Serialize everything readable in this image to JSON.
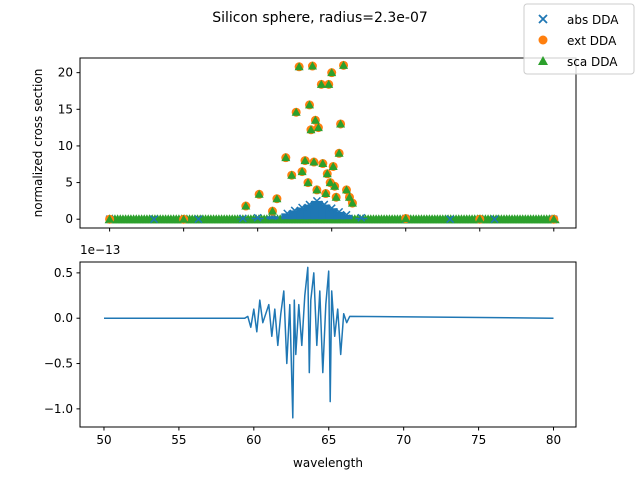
{
  "title": "Silicon sphere, radius=2.3e-07",
  "legend": {
    "placement": "top-right (outside axes)",
    "items": [
      {
        "label": "abs DDA",
        "marker": "x",
        "color": "#1f77b4"
      },
      {
        "label": "ext DDA",
        "marker": "circle",
        "color": "#ff7f0e"
      },
      {
        "label": "sca DDA",
        "marker": "triangle",
        "color": "#2ca02c"
      }
    ]
  },
  "chart_data": [
    {
      "type": "scatter",
      "ylabel": "normalized cross section",
      "xlim": [
        48,
        81.5
      ],
      "ylim": [
        -1.2,
        22
      ],
      "yticks": [
        "0",
        "5",
        "10",
        "15",
        "20"
      ],
      "ytick_values": [
        0,
        5,
        10,
        15,
        20
      ],
      "xtick_values": [
        50,
        55,
        60,
        65,
        70,
        75,
        80
      ],
      "grid": false,
      "series": [
        {
          "name": "abs DDA",
          "marker": "x",
          "color": "#1f77b4",
          "x": [
            50,
            53,
            56,
            59,
            60,
            61,
            62,
            62.5,
            63,
            63.5,
            64,
            64.5,
            65,
            65.5,
            66,
            67,
            70,
            73,
            76,
            80
          ],
          "y": [
            0,
            0,
            0,
            0.1,
            0.2,
            0.4,
            0.8,
            1.2,
            1.6,
            2.0,
            2.5,
            2.0,
            1.5,
            1.0,
            0.6,
            0.2,
            0.05,
            0,
            0,
            0
          ]
        },
        {
          "name": "ext DDA",
          "marker": "circle",
          "color": "#ff7f0e",
          "x": [
            50,
            55,
            59.2,
            60.1,
            61,
            61.3,
            61.9,
            62.3,
            62.6,
            62.8,
            63,
            63.2,
            63.4,
            63.5,
            63.6,
            63.7,
            63.8,
            63.9,
            64,
            64.1,
            64.3,
            64.4,
            64.6,
            64.7,
            64.8,
            64.9,
            65,
            65.1,
            65.2,
            65.3,
            65.5,
            65.6,
            65.8,
            66,
            66.2,
            66.4,
            70,
            75,
            80
          ],
          "y": [
            0,
            0,
            1.8,
            3.4,
            1.1,
            2.8,
            8.4,
            6.0,
            14.6,
            20.8,
            6.5,
            8.0,
            5.0,
            15.6,
            12.2,
            20.9,
            7.8,
            13.5,
            4.0,
            12.5,
            18.4,
            7.6,
            3.5,
            6.2,
            18.4,
            5.0,
            20.0,
            7.2,
            4.5,
            3.0,
            9.0,
            13.0,
            21.0,
            4.0,
            3.0,
            2.2,
            0.1,
            0,
            0
          ]
        },
        {
          "name": "sca DDA",
          "marker": "triangle",
          "color": "#2ca02c",
          "x": [
            50,
            55,
            59.2,
            60.1,
            61,
            61.3,
            61.9,
            62.3,
            62.6,
            62.8,
            63,
            63.2,
            63.4,
            63.5,
            63.6,
            63.7,
            63.8,
            63.9,
            64,
            64.1,
            64.3,
            64.4,
            64.6,
            64.7,
            64.8,
            64.9,
            65,
            65.1,
            65.2,
            65.3,
            65.5,
            65.6,
            65.8,
            66,
            66.2,
            66.4,
            70,
            75,
            80
          ],
          "y": [
            0,
            0,
            1.8,
            3.4,
            1.1,
            2.8,
            8.4,
            6.0,
            14.6,
            20.8,
            6.5,
            8.0,
            5.0,
            15.6,
            12.2,
            20.9,
            7.8,
            13.5,
            4.0,
            12.5,
            18.4,
            7.6,
            3.5,
            6.2,
            18.4,
            5.0,
            20.0,
            7.2,
            4.5,
            3.0,
            9.0,
            13.0,
            21.0,
            4.0,
            3.0,
            2.2,
            0.1,
            0,
            0
          ]
        }
      ]
    },
    {
      "type": "line",
      "xlabel": "wavelength",
      "offset_text": "1e−13",
      "xlim": [
        48.4,
        81.5
      ],
      "ylim": [
        -1.2,
        0.62
      ],
      "xticks": [
        "50",
        "55",
        "60",
        "65",
        "70",
        "75",
        "80"
      ],
      "xtick_values": [
        50,
        55,
        60,
        65,
        70,
        75,
        80
      ],
      "yticks": [
        "0.5",
        "0.0",
        "−0.5",
        "−1.0"
      ],
      "ytick_values": [
        0.5,
        0.0,
        -0.5,
        -1.0
      ],
      "grid": false,
      "series": [
        {
          "color": "#1f77b4",
          "x": [
            50,
            59.4,
            59.6,
            59.8,
            60,
            60.2,
            60.4,
            60.6,
            60.8,
            61,
            61.2,
            61.4,
            61.6,
            61.8,
            62,
            62.2,
            62.4,
            62.6,
            62.7,
            62.8,
            63,
            63.2,
            63.4,
            63.6,
            63.7,
            63.8,
            64,
            64.2,
            64.4,
            64.6,
            64.8,
            65,
            65.1,
            65.2,
            65.4,
            65.6,
            65.8,
            66,
            66.2,
            66.4,
            80
          ],
          "y": [
            0,
            0,
            0.02,
            -0.1,
            0.1,
            -0.15,
            0.2,
            -0.05,
            0.05,
            0.15,
            -0.2,
            0.1,
            -0.3,
            0.05,
            0.3,
            -0.5,
            0.15,
            -1.1,
            0.2,
            -0.4,
            0.15,
            -0.3,
            0.25,
            0.56,
            -0.6,
            0.2,
            0.5,
            -0.3,
            0.3,
            -0.6,
            0.15,
            0.52,
            -0.92,
            0.3,
            -0.2,
            0.1,
            -0.4,
            0.05,
            -0.05,
            0.02,
            0
          ]
        }
      ]
    }
  ]
}
